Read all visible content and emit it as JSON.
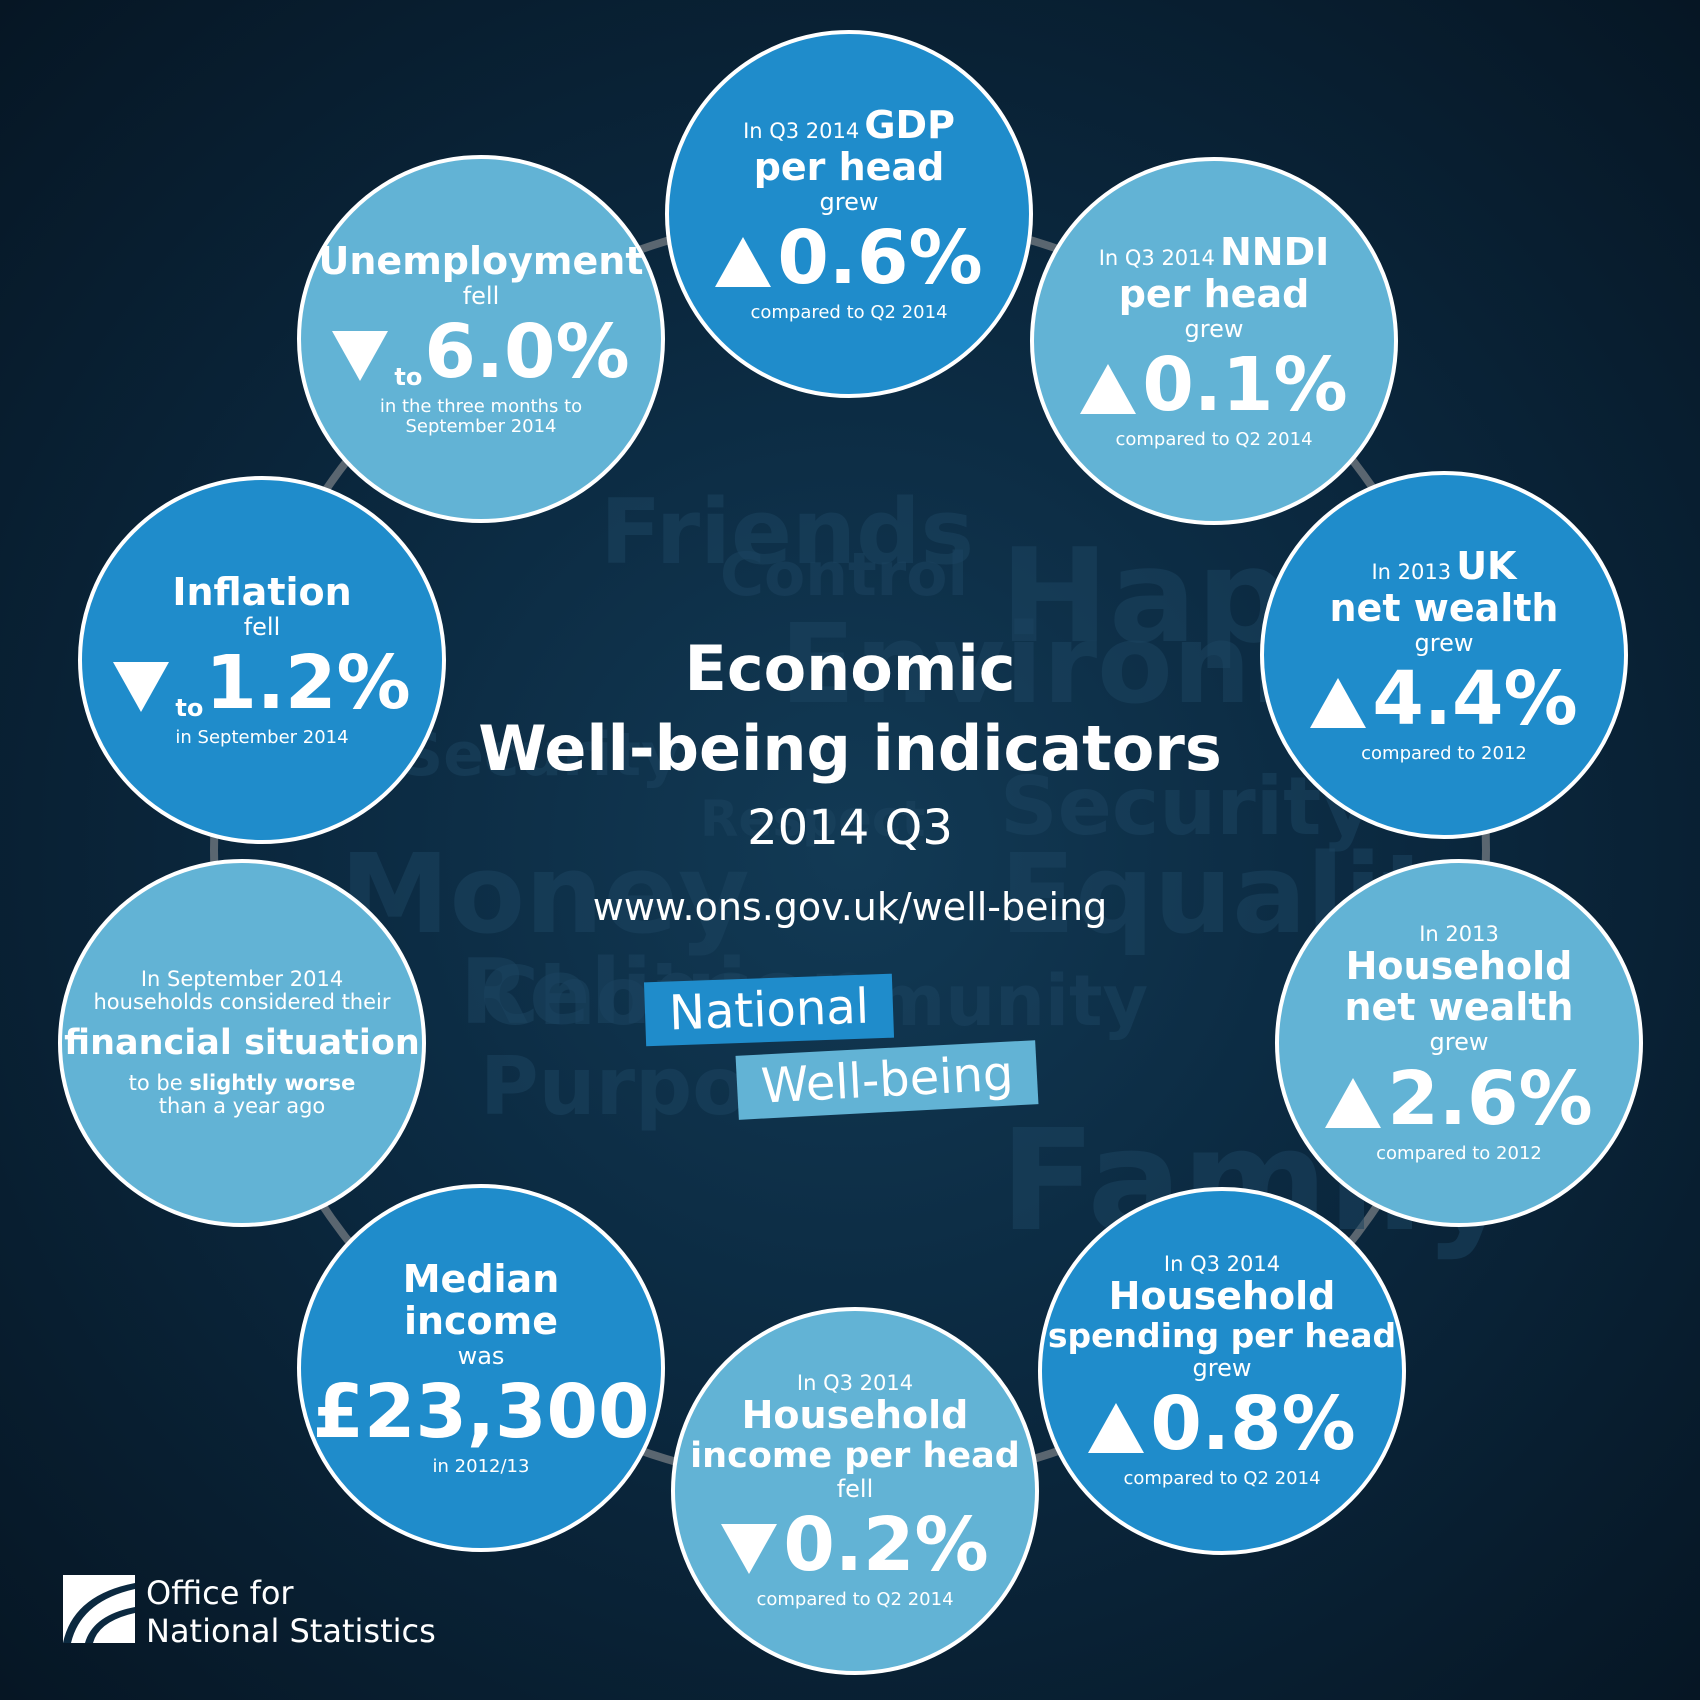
{
  "title": [
    "Economic",
    "Well-being indicators"
  ],
  "subtitle": "2014 Q3",
  "url": "www.ons.gov.uk/well-being",
  "badge": [
    "National",
    "Well-being"
  ],
  "logo": [
    "Office for",
    "National Statistics"
  ],
  "background_words": [
    "Friends",
    "Control",
    "Happy",
    "Environment",
    "Security",
    "Security",
    "Respect",
    "Equality",
    "Religion",
    "Choice",
    "Purpose",
    "Family",
    "Community",
    "Money"
  ],
  "circles": [
    {
      "intro": "In Q3 2014",
      "subject": [
        "GDP",
        "per head"
      ],
      "verb": "grew",
      "figure": "0.6%",
      "note": [
        "compared to Q2 2014"
      ]
    },
    {
      "intro": "In Q3 2014",
      "subject": [
        "NNDI",
        "per head"
      ],
      "verb": "grew",
      "figure": "0.1%",
      "note": [
        "compared to Q2 2014"
      ]
    },
    {
      "intro": "In 2013",
      "subject": [
        "UK",
        "net wealth"
      ],
      "verb": "grew",
      "figure": "4.4%",
      "note": [
        "compared to 2012"
      ]
    },
    {
      "intro": "In 2013",
      "subject": [
        "Household",
        "net wealth"
      ],
      "verb": "grew",
      "figure": "2.6%",
      "note": [
        "compared to 2012"
      ]
    },
    {
      "intro": "In Q3 2014",
      "subject": [
        "Household",
        "spending per head"
      ],
      "verb": "grew",
      "figure": "0.8%",
      "note": [
        "compared to Q2 2014"
      ]
    },
    {
      "intro": "In Q3 2014",
      "subject": [
        "Household",
        "income per head"
      ],
      "verb": "fell",
      "figure": "0.2%",
      "note": [
        "compared to Q2 2014"
      ]
    },
    {
      "subject": [
        "Median",
        "income"
      ],
      "verb": "was",
      "figure": "£23,300",
      "note": [
        "in 2012/13"
      ]
    },
    {
      "intro": [
        "In September 2014",
        "households considered their"
      ],
      "subject": [
        "financial situation"
      ],
      "verb": "to be",
      "emphasis": "slightly worse",
      "note": [
        "than a year ago"
      ]
    },
    {
      "subject": [
        "Inflation"
      ],
      "verb": "fell",
      "prefix": "to",
      "figure": "1.2%",
      "note": [
        "in September 2014"
      ]
    },
    {
      "subject": [
        "Unemployment"
      ],
      "verb": "fell",
      "prefix": "to",
      "figure": "6.0%",
      "note": [
        "in the three months to",
        "September 2014"
      ]
    }
  ]
}
